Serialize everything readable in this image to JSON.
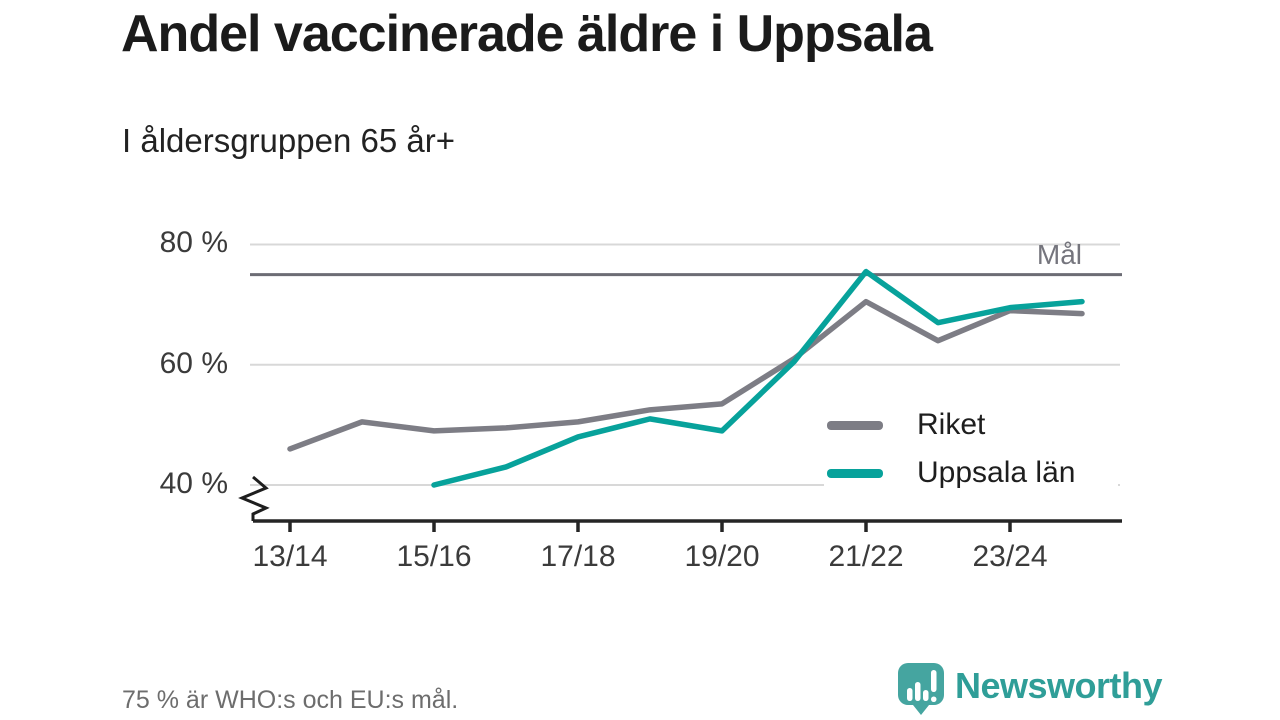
{
  "header": {
    "title": "Andel vaccinerade äldre i Uppsala",
    "subtitle": "I åldersgruppen 65 år+"
  },
  "chart_data": {
    "type": "line",
    "x": [
      "13/14",
      "14/15",
      "15/16",
      "16/17",
      "17/18",
      "18/19",
      "19/20",
      "20/21",
      "21/22",
      "22/23",
      "23/24",
      "24/25"
    ],
    "x_tick_labels": [
      "13/14",
      "15/16",
      "17/18",
      "19/20",
      "21/22",
      "23/24"
    ],
    "y_ticks": [
      {
        "value": 80,
        "label": "80 %"
      },
      {
        "value": 60,
        "label": "60 %"
      },
      {
        "value": 40,
        "label": "40 %"
      }
    ],
    "ylim": [
      37,
      82
    ],
    "unit": "%",
    "axis_break_below": 40,
    "grid": "horizontal",
    "legend_position": "inside-bottom-right",
    "goal": {
      "value": 75,
      "label": "Mål",
      "color": "#6c6c74"
    },
    "series": [
      {
        "name": "Riket",
        "color": "#7d7d85",
        "values": [
          46,
          50.5,
          49,
          49.5,
          50.5,
          52.5,
          53.5,
          61,
          70.5,
          64,
          69,
          68.5
        ]
      },
      {
        "name": "Uppsala län",
        "color": "#07a29b",
        "values": [
          null,
          null,
          40,
          43,
          48,
          51,
          49,
          60.5,
          75.5,
          67,
          69.5,
          70.5
        ]
      }
    ],
    "gridline_color": "#d8d8d8",
    "axis_color": "#252525"
  },
  "footer": {
    "note": "75 % är WHO:s och EU:s mål."
  },
  "logo": {
    "text": "Newsworthy",
    "color": "#2f9e98",
    "icon": "bar-chart-speech-bubble-icon",
    "icon_color": "#45a5a0"
  }
}
